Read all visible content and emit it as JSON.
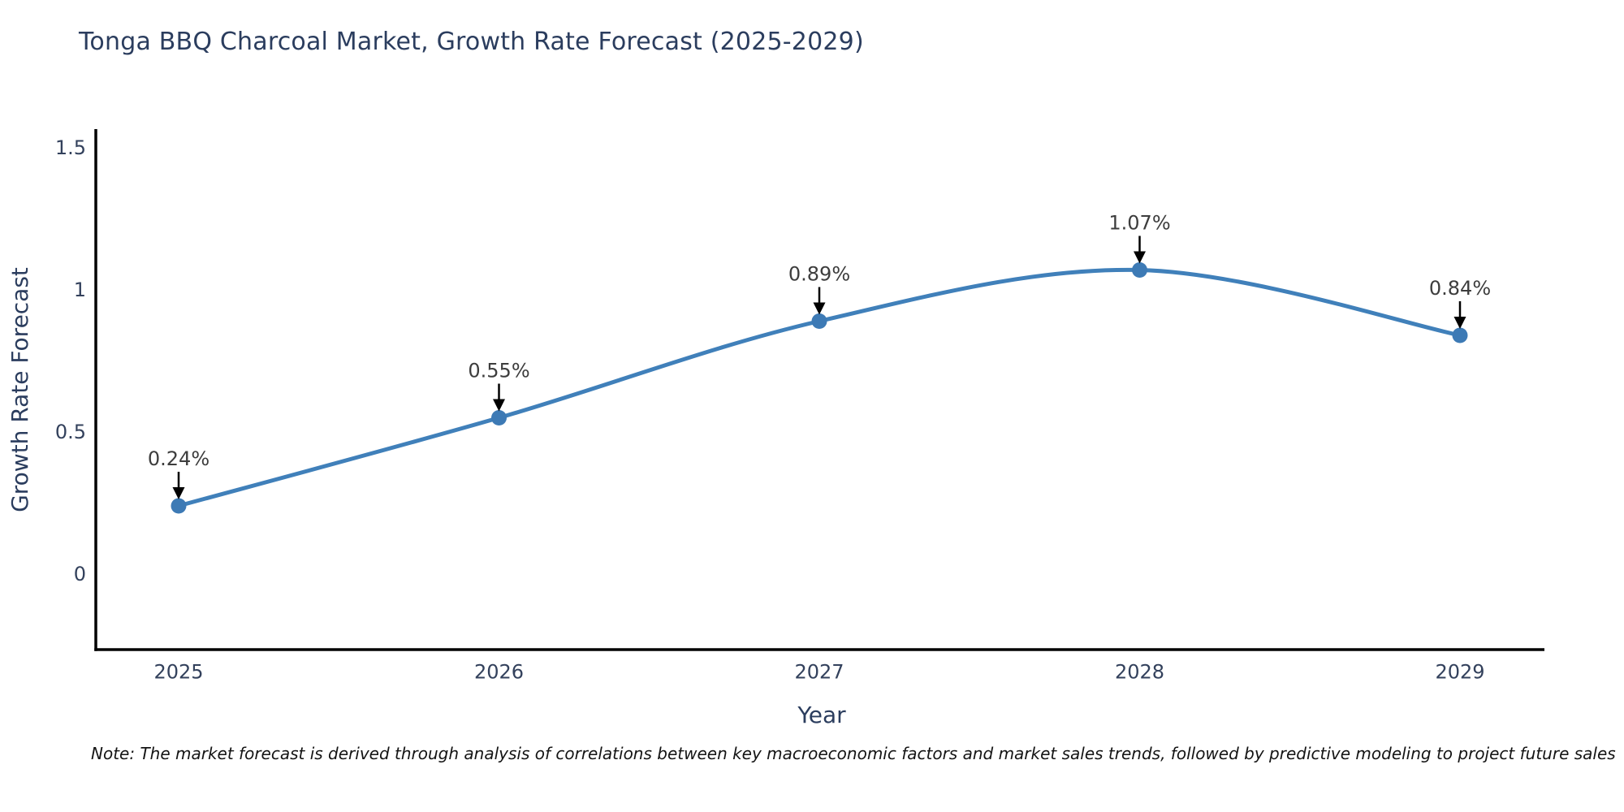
{
  "title": "Tonga BBQ Charcoal Market, Growth Rate Forecast (2025-2029)",
  "note": "Note: The market forecast is derived through analysis of correlations between key macroeconomic factors and market sales trends, followed by predictive modeling to project future sales",
  "chart_data": {
    "type": "line",
    "x": [
      2025,
      2026,
      2027,
      2028,
      2029
    ],
    "values": [
      0.24,
      0.55,
      0.89,
      1.07,
      0.84
    ],
    "point_labels": [
      "0.24%",
      "0.55%",
      "0.89%",
      "1.07%",
      "0.84%"
    ],
    "xtick_labels": [
      "2025",
      "2026",
      "2027",
      "2028",
      "2029"
    ],
    "yticks": [
      0,
      0.5,
      1,
      1.5
    ],
    "ytick_labels": [
      "0",
      "0.5",
      "1",
      "1.5"
    ],
    "xlabel": "Year",
    "ylabel": "Growth Rate Forecast",
    "ylim": [
      -0.27,
      1.57
    ],
    "grid": false,
    "legend": "none",
    "marker": "circle",
    "annotation_arrows": true,
    "colors": {
      "line": "#4080ba",
      "marker": "#3d7ab5",
      "spine": "#000000",
      "arrow": "#000000",
      "tick_text": "#33415c",
      "axis_text": "#2b3d5e",
      "annotation_text": "#3d3d3d",
      "background": "#ffffff"
    }
  }
}
